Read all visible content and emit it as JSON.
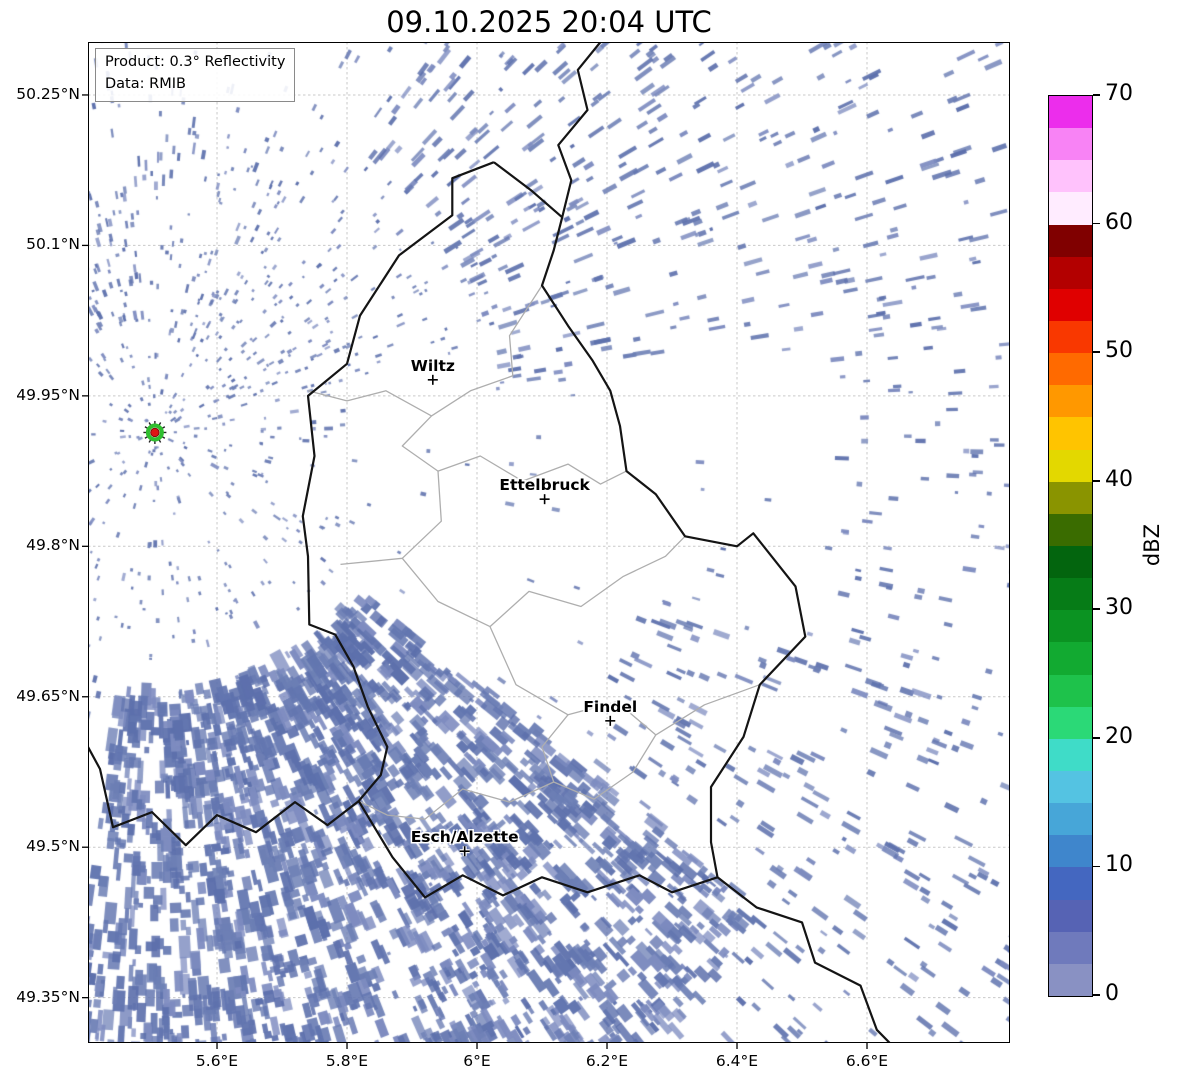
{
  "title": "09.10.2025 20:04 UTC",
  "info_box": {
    "product_line": "Product: 0.3° Reflectivity",
    "data_line": "Data: RMIB"
  },
  "map": {
    "extent": {
      "lon_min": 5.4015,
      "lon_max": 6.82,
      "lat_min": 49.3048,
      "lat_max": 50.3028
    },
    "grid_color": "#c9c9c9",
    "border_color": "#141414",
    "district_color": "#aeaeae",
    "x_ticks": [
      {
        "value": 5.6,
        "label": "5.6°E"
      },
      {
        "value": 5.8,
        "label": "5.8°E"
      },
      {
        "value": 6.0,
        "label": "6°E"
      },
      {
        "value": 6.2,
        "label": "6.2°E"
      },
      {
        "value": 6.4,
        "label": "6.4°E"
      },
      {
        "value": 6.6,
        "label": "6.6°E"
      }
    ],
    "y_ticks": [
      {
        "value": 50.25,
        "label": "50.25°N"
      },
      {
        "value": 50.1,
        "label": "50.1°N"
      },
      {
        "value": 49.95,
        "label": "49.95°N"
      },
      {
        "value": 49.8,
        "label": "49.8°N"
      },
      {
        "value": 49.65,
        "label": "49.65°N"
      },
      {
        "value": 49.5,
        "label": "49.5°N"
      },
      {
        "value": 49.35,
        "label": "49.35°N"
      }
    ],
    "cities": [
      {
        "name": "Wiltz",
        "lat": 49.966,
        "lon": 5.932
      },
      {
        "name": "Ettelbruck",
        "lat": 49.847,
        "lon": 6.104
      },
      {
        "name": "Findel",
        "lat": 49.626,
        "lon": 6.205
      },
      {
        "name": "Esch/Alzette",
        "lat": 49.496,
        "lon": 5.981
      }
    ],
    "radar_site": {
      "name": "radar-site",
      "lat": 49.9135,
      "lon": 5.5044
    },
    "echo_colors": [
      "#6d7fb5",
      "#6376b0",
      "#7e8cc0",
      "#5d70ac"
    ],
    "echo_seed": 1234,
    "echo_clusters": [
      {
        "name": "ambient",
        "count": 750,
        "a0": -180,
        "a1": 180,
        "r0": 60,
        "r1": 1300,
        "len": [
          3,
          9
        ],
        "wid": [
          2,
          4
        ]
      },
      {
        "name": "radar-halo",
        "count": 340,
        "a0": -180,
        "a1": 180,
        "r0": 14,
        "r1": 235,
        "len": [
          2,
          6
        ],
        "wid": [
          2,
          3
        ]
      },
      {
        "name": "near-ne",
        "count": 160,
        "a0": -80,
        "a1": -15,
        "r0": 90,
        "r1": 360,
        "len": [
          2,
          7
        ],
        "wid": [
          2,
          3
        ]
      },
      {
        "name": "top-left",
        "count": 270,
        "a0": -150,
        "a1": -95,
        "r0": 110,
        "r1": 470,
        "len": [
          3,
          10
        ],
        "wid": [
          2,
          4
        ]
      },
      {
        "name": "north",
        "count": 210,
        "a0": -95,
        "a1": -55,
        "r0": 250,
        "r1": 1000,
        "len": [
          4,
          12
        ],
        "wid": [
          2,
          4
        ]
      },
      {
        "name": "northeast",
        "count": 680,
        "a0": -55,
        "a1": -8,
        "r0": 350,
        "r1": 1150,
        "len": [
          6,
          20
        ],
        "wid": [
          3,
          5
        ]
      },
      {
        "name": "east",
        "count": 190,
        "a0": -8,
        "a1": 18,
        "r0": 680,
        "r1": 1250,
        "len": [
          5,
          14
        ],
        "wid": [
          3,
          5
        ]
      },
      {
        "name": "southeast",
        "count": 620,
        "a0": 18,
        "a1": 60,
        "r0": 520,
        "r1": 1280,
        "len": [
          6,
          20
        ],
        "wid": [
          3,
          6
        ]
      },
      {
        "name": "south-dense",
        "count": 1500,
        "a0": 38,
        "a1": 98,
        "r0": 260,
        "r1": 780,
        "len": [
          6,
          24
        ],
        "wid": [
          4,
          12
        ]
      },
      {
        "name": "south-far",
        "count": 520,
        "a0": 55,
        "a1": 102,
        "r0": 600,
        "r1": 1020,
        "len": [
          5,
          14
        ],
        "wid": [
          3,
          6
        ]
      },
      {
        "name": "southwest",
        "count": 160,
        "a0": 100,
        "a1": 140,
        "r0": 200,
        "r1": 720,
        "len": [
          4,
          10
        ],
        "wid": [
          3,
          5
        ]
      },
      {
        "name": "west",
        "count": 90,
        "a0": 140,
        "a1": 220,
        "r0": 90,
        "r1": 520,
        "len": [
          3,
          8
        ],
        "wid": [
          2,
          3
        ]
      }
    ],
    "borders": {
      "country": [
        [
          50.183,
          6.026
        ],
        [
          50.155,
          6.083
        ],
        [
          50.128,
          6.131
        ],
        [
          50.095,
          6.118
        ],
        [
          50.06,
          6.1
        ],
        [
          50.02,
          6.14
        ],
        [
          49.985,
          6.178
        ],
        [
          49.955,
          6.205
        ],
        [
          49.92,
          6.22
        ],
        [
          49.875,
          6.23
        ],
        [
          49.852,
          6.275
        ],
        [
          49.81,
          6.32
        ],
        [
          49.8,
          6.4
        ],
        [
          49.813,
          6.425
        ],
        [
          49.76,
          6.49
        ],
        [
          49.71,
          6.505
        ],
        [
          49.662,
          6.435
        ],
        [
          49.61,
          6.41
        ],
        [
          49.56,
          6.36
        ],
        [
          49.505,
          6.36
        ],
        [
          49.47,
          6.37
        ],
        [
          49.455,
          6.3
        ],
        [
          49.472,
          6.25
        ],
        [
          49.455,
          6.17
        ],
        [
          49.47,
          6.1
        ],
        [
          49.452,
          6.04
        ],
        [
          49.472,
          5.978
        ],
        [
          49.45,
          5.92
        ],
        [
          49.49,
          5.87
        ],
        [
          49.546,
          5.818
        ],
        [
          49.572,
          5.852
        ],
        [
          49.6,
          5.862
        ],
        [
          49.64,
          5.832
        ],
        [
          49.68,
          5.81
        ],
        [
          49.712,
          5.782
        ],
        [
          49.722,
          5.742
        ],
        [
          49.79,
          5.74
        ],
        [
          49.83,
          5.732
        ],
        [
          49.89,
          5.75
        ],
        [
          49.95,
          5.74
        ],
        [
          49.982,
          5.8
        ],
        [
          50.03,
          5.82
        ],
        [
          50.09,
          5.88
        ],
        [
          50.13,
          5.962
        ],
        [
          50.167,
          5.962
        ],
        [
          50.183,
          6.026
        ]
      ],
      "be_de": [
        [
          50.128,
          6.131
        ],
        [
          50.165,
          6.145
        ],
        [
          50.2,
          6.125
        ],
        [
          50.235,
          6.17
        ],
        [
          50.275,
          6.155
        ],
        [
          50.3028,
          6.19
        ]
      ],
      "fr_de": [
        [
          49.47,
          6.37
        ],
        [
          49.44,
          6.43
        ],
        [
          49.425,
          6.5
        ],
        [
          49.385,
          6.52
        ],
        [
          49.362,
          6.59
        ],
        [
          49.318,
          6.615
        ],
        [
          49.3048,
          6.635
        ]
      ],
      "be_fr": [
        [
          49.546,
          5.818
        ],
        [
          49.522,
          5.77
        ],
        [
          49.545,
          5.72
        ],
        [
          49.515,
          5.66
        ],
        [
          49.532,
          5.6
        ],
        [
          49.502,
          5.552
        ],
        [
          49.535,
          5.5
        ],
        [
          49.52,
          5.44
        ],
        [
          49.578,
          5.42
        ],
        [
          49.6,
          5.4015
        ]
      ],
      "districts": [
        [
          [
            49.955,
            5.74
          ],
          [
            49.945,
            5.8
          ],
          [
            49.955,
            5.86
          ],
          [
            49.93,
            5.93
          ],
          [
            49.955,
            5.99
          ],
          [
            49.97,
            6.055
          ],
          [
            50.01,
            6.05
          ],
          [
            50.06,
            6.1
          ]
        ],
        [
          [
            49.93,
            5.93
          ],
          [
            49.9,
            5.885
          ],
          [
            49.875,
            5.94
          ],
          [
            49.89,
            6.005
          ],
          [
            49.865,
            6.07
          ],
          [
            49.882,
            6.14
          ],
          [
            49.862,
            6.19
          ],
          [
            49.875,
            6.23
          ]
        ],
        [
          [
            49.875,
            5.94
          ],
          [
            49.825,
            5.945
          ],
          [
            49.788,
            5.885
          ],
          [
            49.782,
            5.79
          ]
        ],
        [
          [
            49.788,
            5.885
          ],
          [
            49.745,
            5.94
          ],
          [
            49.72,
            6.02
          ],
          [
            49.662,
            6.06
          ],
          [
            49.632,
            6.14
          ],
          [
            49.645,
            6.215
          ],
          [
            49.612,
            6.275
          ],
          [
            49.642,
            6.35
          ],
          [
            49.662,
            6.435
          ]
        ],
        [
          [
            49.632,
            6.14
          ],
          [
            49.6,
            6.1
          ],
          [
            49.565,
            6.118
          ],
          [
            49.548,
            6.18
          ],
          [
            49.575,
            6.24
          ],
          [
            49.612,
            6.275
          ]
        ],
        [
          [
            49.565,
            6.118
          ],
          [
            49.545,
            6.05
          ],
          [
            49.558,
            5.978
          ],
          [
            49.528,
            5.92
          ],
          [
            49.532,
            5.862
          ],
          [
            49.546,
            5.818
          ]
        ],
        [
          [
            49.72,
            6.02
          ],
          [
            49.755,
            6.08
          ],
          [
            49.74,
            6.16
          ],
          [
            49.77,
            6.225
          ],
          [
            49.79,
            6.29
          ],
          [
            49.81,
            6.32
          ]
        ]
      ]
    }
  },
  "colorbar": {
    "label": "dBZ",
    "min": 0,
    "max": 70,
    "ticks": [
      0,
      10,
      20,
      30,
      40,
      50,
      60,
      70
    ],
    "segments": [
      {
        "from": 0,
        "to": 2.5,
        "color": "#8991c3"
      },
      {
        "from": 2.5,
        "to": 5,
        "color": "#6f7abc"
      },
      {
        "from": 5,
        "to": 7.5,
        "color": "#5663b4"
      },
      {
        "from": 7.5,
        "to": 10,
        "color": "#4467c0"
      },
      {
        "from": 10,
        "to": 12.5,
        "color": "#3f86cc"
      },
      {
        "from": 12.5,
        "to": 15,
        "color": "#47a6d8"
      },
      {
        "from": 15,
        "to": 17.5,
        "color": "#54c3e2"
      },
      {
        "from": 17.5,
        "to": 20,
        "color": "#3fdcc8"
      },
      {
        "from": 20,
        "to": 22.5,
        "color": "#2bd977"
      },
      {
        "from": 22.5,
        "to": 25,
        "color": "#1ec24b"
      },
      {
        "from": 25,
        "to": 27.5,
        "color": "#12aa31"
      },
      {
        "from": 27.5,
        "to": 30,
        "color": "#0b9322"
      },
      {
        "from": 30,
        "to": 32.5,
        "color": "#067c17"
      },
      {
        "from": 32.5,
        "to": 35,
        "color": "#03650e"
      },
      {
        "from": 35,
        "to": 37.5,
        "color": "#3a6c00"
      },
      {
        "from": 37.5,
        "to": 40,
        "color": "#8a9400"
      },
      {
        "from": 40,
        "to": 42.5,
        "color": "#e3d800"
      },
      {
        "from": 42.5,
        "to": 45,
        "color": "#ffc400"
      },
      {
        "from": 45,
        "to": 47.5,
        "color": "#ff9800"
      },
      {
        "from": 47.5,
        "to": 50,
        "color": "#ff6a00"
      },
      {
        "from": 50,
        "to": 52.5,
        "color": "#f93800"
      },
      {
        "from": 52.5,
        "to": 55,
        "color": "#e00000"
      },
      {
        "from": 55,
        "to": 57.5,
        "color": "#b30000"
      },
      {
        "from": 57.5,
        "to": 60,
        "color": "#800000"
      },
      {
        "from": 60,
        "to": 62.5,
        "color": "#ffecff"
      },
      {
        "from": 62.5,
        "to": 65,
        "color": "#ffc2fc"
      },
      {
        "from": 65,
        "to": 67.5,
        "color": "#f883f5"
      },
      {
        "from": 67.5,
        "to": 70,
        "color": "#ec2dec"
      }
    ]
  }
}
